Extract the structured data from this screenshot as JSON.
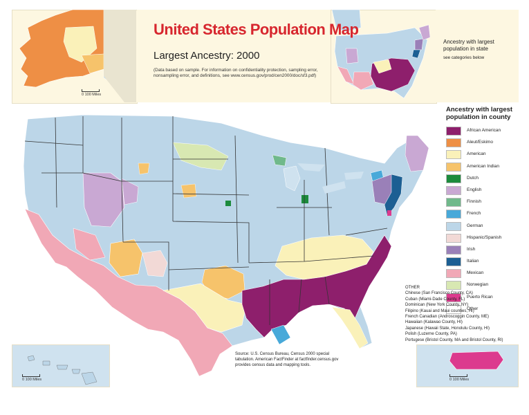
{
  "title": "United States Population Map",
  "subtitle": "Largest Ancestry: 2000",
  "note": "(Data based on sample. For information on confidentiality protection, sampling error, nonsampling error, and definitions, see www.census.gov/prod/cen2000/doc/sf3.pdf)",
  "state_inset": {
    "title": "Ancestry with largest population in state",
    "subtitle": "see categories below"
  },
  "scale_labels": {
    "alaska": "0    100 Miles",
    "hawaii": "0    100 Miles",
    "puerto_rico": "0    100 Miles"
  },
  "legend": {
    "title": "Ancestry with largest population in county",
    "items": [
      {
        "label": "African American",
        "color": "#8e1f6c"
      },
      {
        "label": "Aleut/Eskimo",
        "color": "#ee8f45"
      },
      {
        "label": "American",
        "color": "#faf1b9"
      },
      {
        "label": "American Indian",
        "color": "#f6c36b"
      },
      {
        "label": "Dutch",
        "color": "#1c8b3c"
      },
      {
        "label": "English",
        "color": "#c9a8d3"
      },
      {
        "label": "Finnish",
        "color": "#70b98b"
      },
      {
        "label": "French",
        "color": "#48a9d9"
      },
      {
        "label": "German",
        "color": "#bcd6e8"
      },
      {
        "label": "Hispanic/Spanish",
        "color": "#f2d9d6"
      },
      {
        "label": "Irish",
        "color": "#9a80b8"
      },
      {
        "label": "Italian",
        "color": "#1c5f93"
      },
      {
        "label": "Mexican",
        "color": "#f1a8b6"
      },
      {
        "label": "Norwegian",
        "color": "#d8e8b2"
      },
      {
        "label": "Puerto Rican",
        "color": "#dc3a8e"
      },
      {
        "label": "Other",
        "color": "#ffffff"
      }
    ]
  },
  "other": {
    "heading": "OTHER",
    "items": [
      "Chinese (San Francisco County, CA)",
      "Cuban (Miami-Dade County, FL)",
      "Dominican (New York County, NY)",
      "Filipino (Kauai and Maui counties, HI)",
      "French Canadian (Androscoggin County, ME)",
      "Hawaiian (Kalawao County, HI)",
      "Japanese (Hawaii State, Honolulu County, HI)",
      "Polish (Luzerne County, PA)",
      "Portugese (Bristol County, MA and Bristol County, RI)"
    ]
  },
  "source": "Source: U.S. Census Bureau, Census 2000 special tabulation. American FactFinder at factfinder.census.gov provides census data and mapping tools."
}
